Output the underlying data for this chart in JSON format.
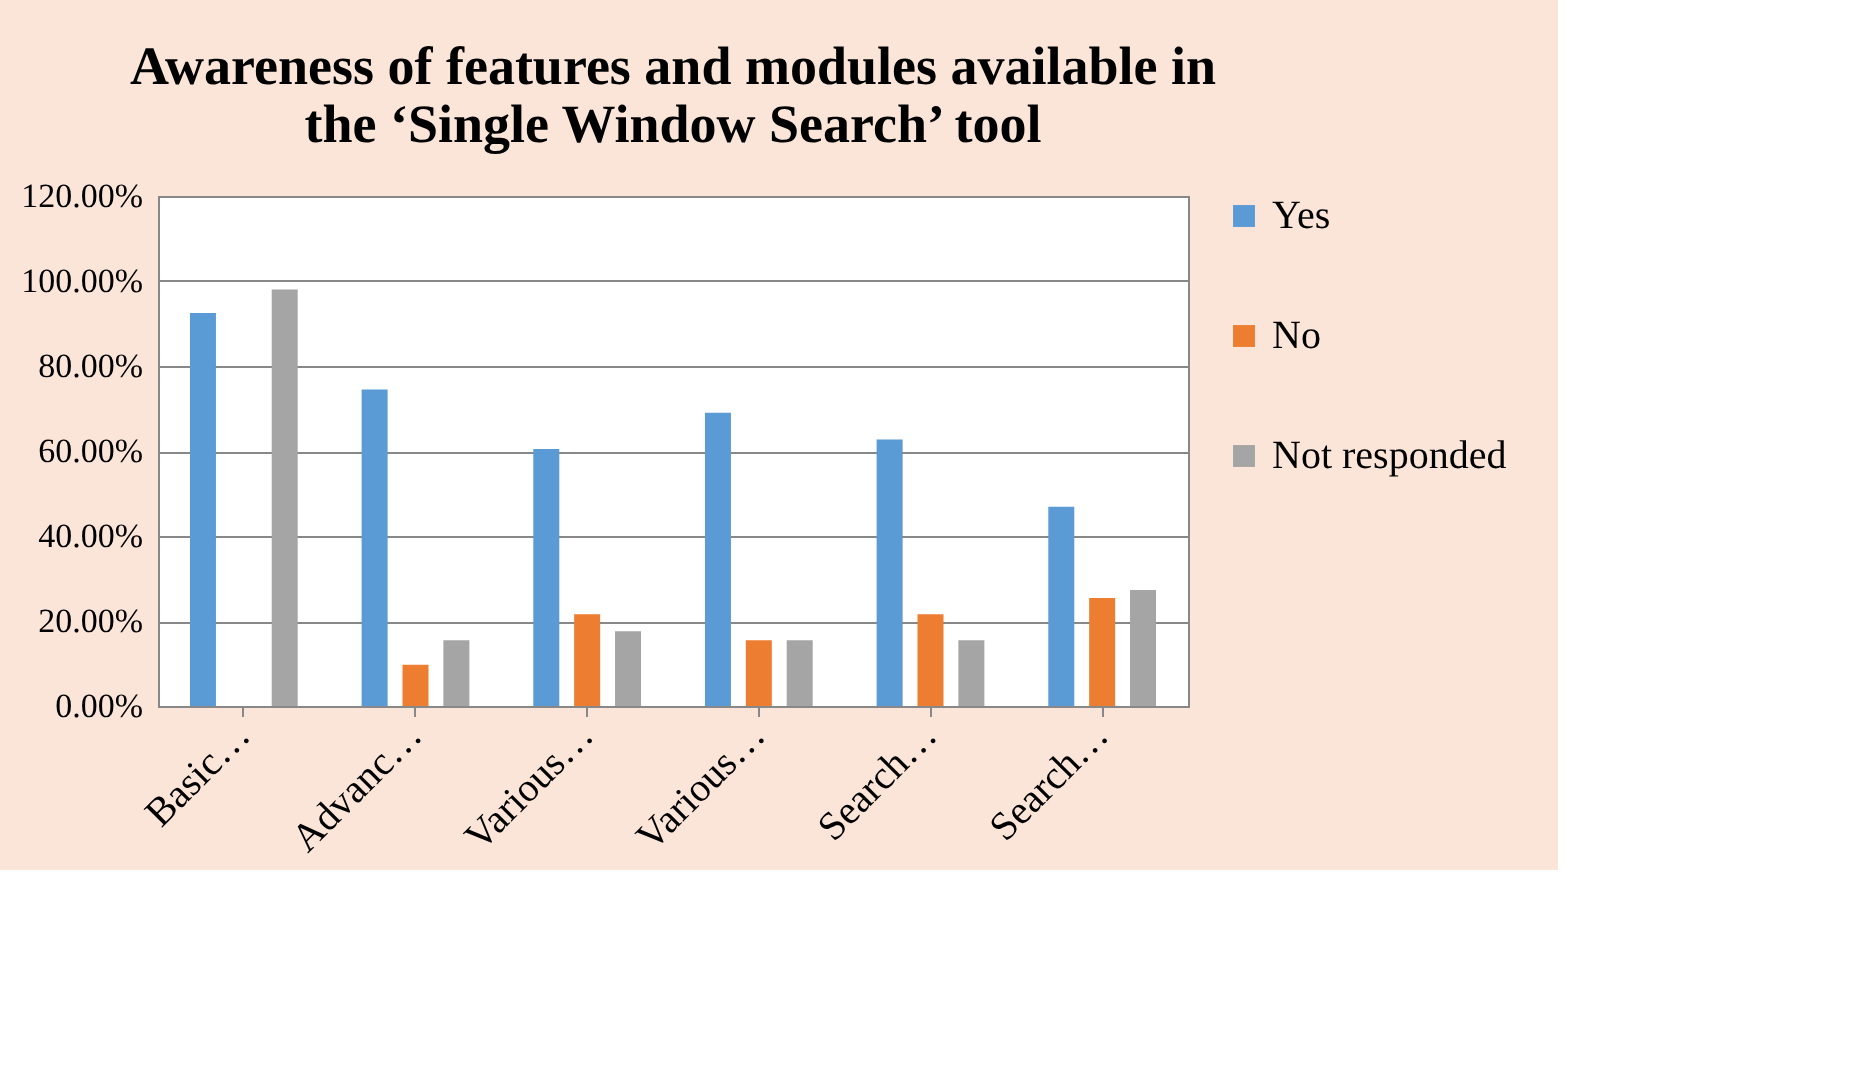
{
  "chart_data": {
    "type": "bar",
    "title": [
      "Awareness of features and modules available in",
      "the ‘Single Window Search’ tool"
    ],
    "categories": [
      "Basic…",
      "Advanc…",
      "Various…",
      "Various…",
      "Search…",
      "Search…"
    ],
    "series": [
      {
        "name": "Yes",
        "color": "#5b9bd5",
        "values": [
          92.5,
          74.5,
          60.5,
          69,
          62.7,
          46.9
        ]
      },
      {
        "name": "No",
        "color": "#ed7d31",
        "values": [
          0,
          9.7,
          21.6,
          15.5,
          21.6,
          25.4
        ]
      },
      {
        "name": "Not responded",
        "color": "#a5a5a5",
        "values": [
          98,
          15.5,
          17.6,
          15.5,
          15.5,
          27.3
        ]
      }
    ],
    "ylim": [
      0,
      120
    ],
    "yticks": [
      {
        "value": 0,
        "label": "0.00%"
      },
      {
        "value": 20,
        "label": "20.00%"
      },
      {
        "value": 40,
        "label": "40.00%"
      },
      {
        "value": 60,
        "label": "60.00%"
      },
      {
        "value": 80,
        "label": "80.00%"
      },
      {
        "value": 100,
        "label": "100.00%"
      },
      {
        "value": 120,
        "label": "120.00%"
      }
    ],
    "grid": "y",
    "legend": "right"
  }
}
